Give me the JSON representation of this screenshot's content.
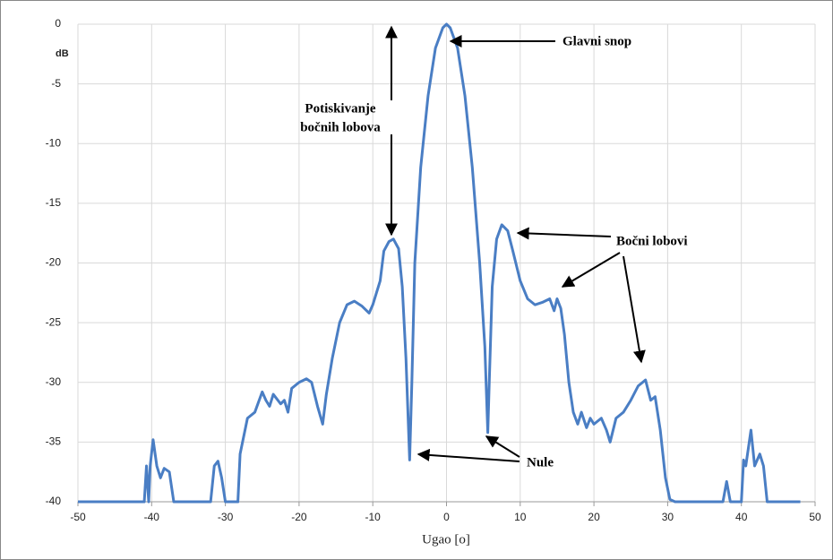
{
  "chart_data": {
    "type": "line",
    "y_label": "dB",
    "x_label": "Ugao [o]",
    "annotations": [
      "Glavni snop",
      "Potiskivanje",
      "bočnih lobova",
      "Bočni lobovi",
      "Nule"
    ],
    "xlim": [
      -50,
      50
    ],
    "xticks": [
      -50,
      -40,
      -30,
      -20,
      -10,
      0,
      10,
      20,
      30,
      40,
      50
    ],
    "ylim": [
      -40,
      0
    ],
    "yticks": [
      0,
      -5,
      -10,
      -15,
      -20,
      -25,
      -30,
      -35,
      -40
    ],
    "grid": true,
    "color": "#4a7ec4",
    "x": [
      -50,
      -41,
      -40.7,
      -40.4,
      -40.2,
      -39.8,
      -39.3,
      -38.8,
      -38.3,
      -37.6,
      -37,
      -32,
      -31.5,
      -31,
      -30.5,
      -30,
      -28.3,
      -28,
      -27,
      -26,
      -25,
      -24.5,
      -24,
      -23.5,
      -22.5,
      -22,
      -21.5,
      -21,
      -20,
      -19,
      -18.3,
      -17.5,
      -16.8,
      -16.3,
      -15.5,
      -14.5,
      -13.5,
      -12.5,
      -11.5,
      -10.5,
      -10,
      -9.5,
      -9,
      -8.5,
      -7.8,
      -7.2,
      -6.5,
      -6,
      -5.5,
      -5,
      -4.7,
      -4.3,
      -3.5,
      -2.5,
      -1.5,
      -0.5,
      0,
      0.5,
      1.5,
      2.5,
      3.5,
      4.5,
      5.2,
      5.6,
      5.8,
      6.2,
      6.8,
      7.5,
      8.3,
      9,
      10,
      11,
      12,
      13,
      14,
      14.6,
      15,
      15.5,
      16,
      16.6,
      17.2,
      17.8,
      18.3,
      19,
      19.5,
      20,
      21,
      21.7,
      22.2,
      23,
      24,
      25,
      26,
      27,
      27.7,
      28.3,
      29,
      29.7,
      30.3,
      31,
      37.5,
      38,
      38.5,
      40,
      40.3,
      40.6,
      41.3,
      41.8,
      42.5,
      43,
      43.5,
      48
    ],
    "values": [
      -40,
      -40,
      -37,
      -40,
      -37,
      -34.8,
      -37,
      -38,
      -37.2,
      -37.5,
      -40,
      -40,
      -37,
      -36.6,
      -38,
      -40,
      -40,
      -36,
      -33,
      -32.5,
      -30.8,
      -31.5,
      -32,
      -31,
      -31.8,
      -31.5,
      -32.5,
      -30.5,
      -30,
      -29.7,
      -30,
      -32,
      -33.5,
      -31,
      -28,
      -25,
      -23.5,
      -23.2,
      -23.6,
      -24.2,
      -23.5,
      -22.5,
      -21.5,
      -19,
      -18.2,
      -18,
      -18.8,
      -22,
      -28,
      -36.5,
      -30,
      -20,
      -12,
      -6,
      -2,
      -0.3,
      0,
      -0.3,
      -2,
      -6,
      -12,
      -20,
      -27,
      -34.2,
      -30,
      -22,
      -18,
      -16.8,
      -17.3,
      -19,
      -21.5,
      -23,
      -23.5,
      -23.3,
      -23,
      -24,
      -23,
      -23.8,
      -26,
      -30,
      -32.5,
      -33.5,
      -32.5,
      -33.8,
      -33,
      -33.5,
      -33,
      -34,
      -35,
      -33,
      -32.5,
      -31.5,
      -30.3,
      -29.8,
      -31.5,
      -31.2,
      -34,
      -38,
      -39.8,
      -40,
      -40,
      -38.3,
      -40,
      -40,
      -36.5,
      -37,
      -34,
      -37,
      -36,
      -37,
      -40,
      -40
    ]
  }
}
